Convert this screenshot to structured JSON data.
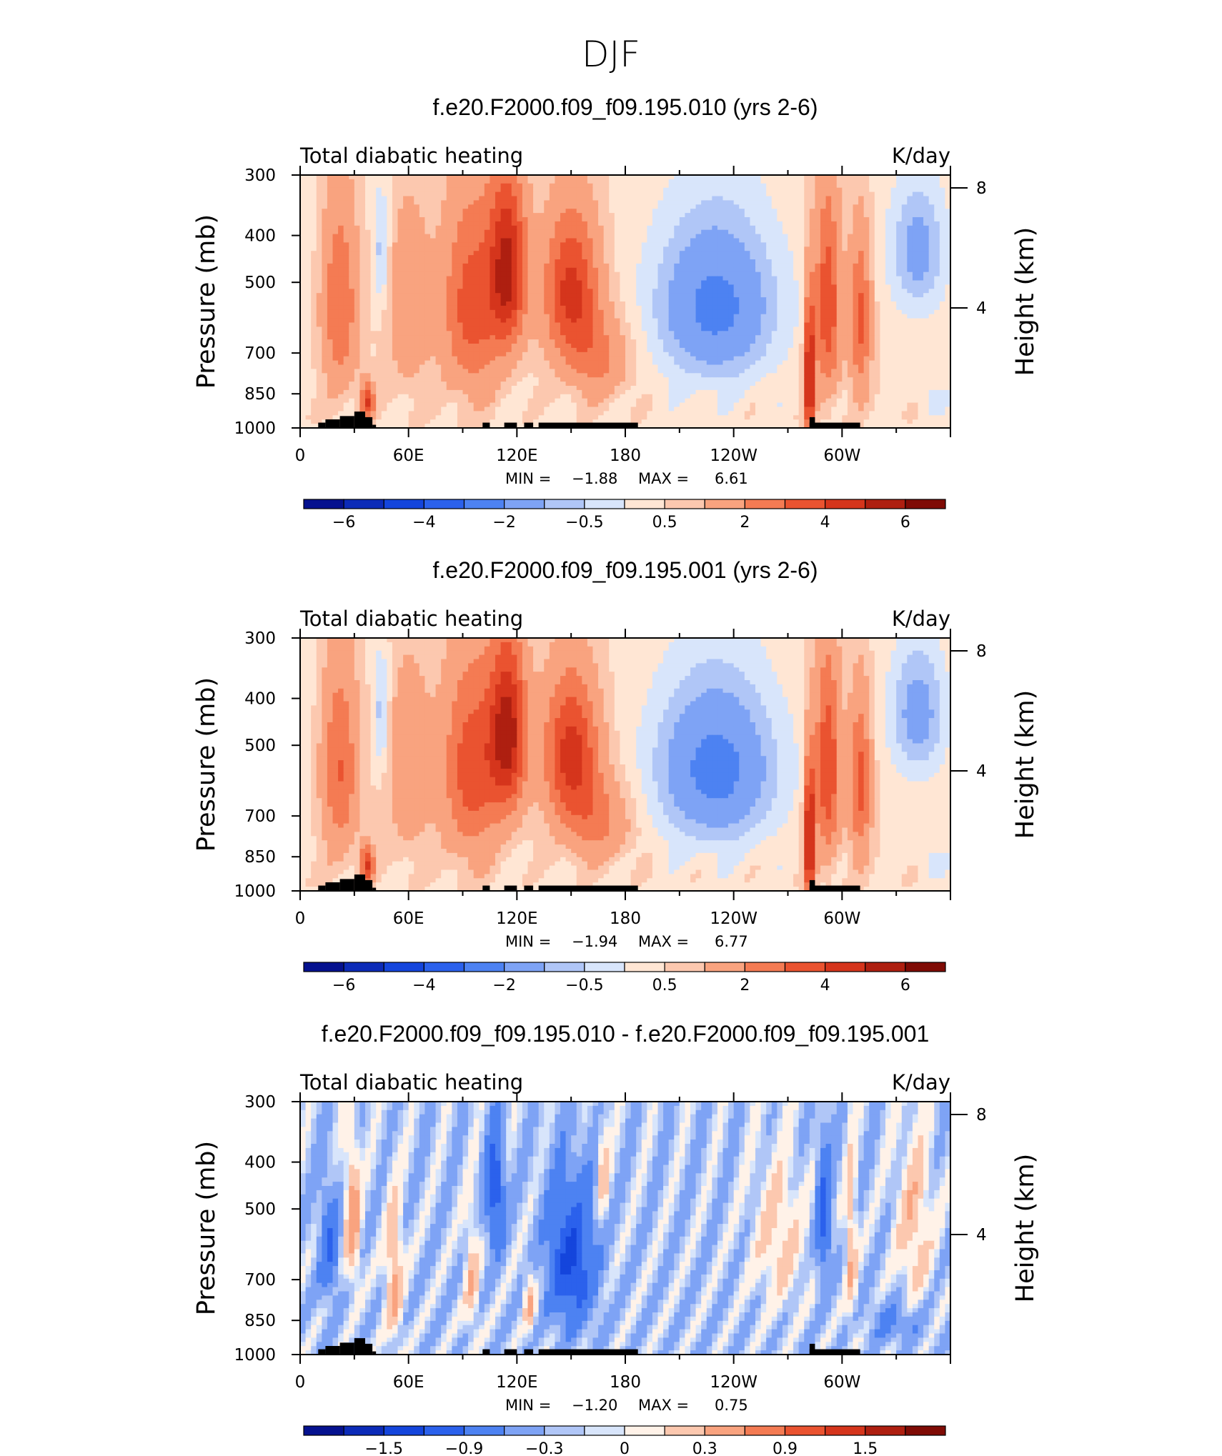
{
  "figure_title": "DJF",
  "palette_main": [
    "#05118f",
    "#0c2bb8",
    "#1445dc",
    "#2b61ec",
    "#4d82f2",
    "#7ea3f5",
    "#b0c6f7",
    "#d8e5fb",
    "#ffe6d4",
    "#fcc8af",
    "#f9a37f",
    "#f47b53",
    "#ea5330",
    "#d5351c",
    "#ae1f10",
    "#7f0b05"
  ],
  "palette_diff": [
    "#05118f",
    "#0c2bb8",
    "#1445dc",
    "#2b61ec",
    "#4d82f2",
    "#7ea3f5",
    "#b0c6f7",
    "#d8e5fb",
    "#fff2e8",
    "#fcc8af",
    "#f9a37f",
    "#f47b53",
    "#ea5330",
    "#d5351c",
    "#ae1f10",
    "#7f0b05"
  ],
  "terrain_color": "#000000",
  "chart_data": [
    {
      "type": "heatmap",
      "title": "f.e20.F2000.f09_f09.195.010 (yrs 2-6)",
      "left_label": "Total diabatic heating",
      "right_label": "K/day",
      "ylabel": "Pressure (mb)",
      "ylabel_right": "Height (km)",
      "x_ticks": [
        "0",
        "60E",
        "120E",
        "180",
        "120W",
        "60W"
      ],
      "x_tick_lon": [
        0,
        60,
        120,
        180,
        240,
        300
      ],
      "xlim": [
        0,
        360
      ],
      "y_ticks": [
        "300",
        "400",
        "500",
        "700",
        "850",
        "1000"
      ],
      "y_tick_values": [
        300,
        400,
        500,
        700,
        850,
        1000
      ],
      "ylim": [
        1000,
        300
      ],
      "height_ticks": [
        "8",
        "4"
      ],
      "height_tick_values": [
        8,
        4
      ],
      "min_label": "MIN =",
      "min_value": "−1.88",
      "max_label": "MAX =",
      "max_value": "6.61",
      "colorbar_labels": [
        "−6",
        "−4",
        "−2",
        "−0.5",
        "0.5",
        "2",
        "4",
        "6"
      ],
      "colorbar_label_positions": [
        1,
        3,
        5,
        7,
        9,
        11,
        13,
        15
      ],
      "colorbar_bins": 16,
      "field": "main",
      "scale": 1.0,
      "min": -1.88,
      "max": 6.61
    },
    {
      "type": "heatmap",
      "title": "f.e20.F2000.f09_f09.195.001 (yrs 2-6)",
      "left_label": "Total diabatic heating",
      "right_label": "K/day",
      "ylabel": "Pressure (mb)",
      "ylabel_right": "Height (km)",
      "x_ticks": [
        "0",
        "60E",
        "120E",
        "180",
        "120W",
        "60W"
      ],
      "x_tick_lon": [
        0,
        60,
        120,
        180,
        240,
        300
      ],
      "xlim": [
        0,
        360
      ],
      "y_ticks": [
        "300",
        "400",
        "500",
        "700",
        "850",
        "1000"
      ],
      "y_tick_values": [
        300,
        400,
        500,
        700,
        850,
        1000
      ],
      "ylim": [
        1000,
        300
      ],
      "height_ticks": [
        "8",
        "4"
      ],
      "height_tick_values": [
        8,
        4
      ],
      "min_label": "MIN =",
      "min_value": "−1.94",
      "max_label": "MAX =",
      "max_value": "6.77",
      "colorbar_labels": [
        "−6",
        "−4",
        "−2",
        "−0.5",
        "0.5",
        "2",
        "4",
        "6"
      ],
      "colorbar_label_positions": [
        1,
        3,
        5,
        7,
        9,
        11,
        13,
        15
      ],
      "colorbar_bins": 16,
      "field": "main",
      "scale": 1.03,
      "min": -1.94,
      "max": 6.77
    },
    {
      "type": "heatmap",
      "title": "f.e20.F2000.f09_f09.195.010 - f.e20.F2000.f09_f09.195.001",
      "left_label": "Total diabatic heating",
      "right_label": "K/day",
      "ylabel": "Pressure (mb)",
      "ylabel_right": "Height (km)",
      "x_ticks": [
        "0",
        "60E",
        "120E",
        "180",
        "120W",
        "60W"
      ],
      "x_tick_lon": [
        0,
        60,
        120,
        180,
        240,
        300
      ],
      "xlim": [
        0,
        360
      ],
      "y_ticks": [
        "300",
        "400",
        "500",
        "700",
        "850",
        "1000"
      ],
      "y_tick_values": [
        300,
        400,
        500,
        700,
        850,
        1000
      ],
      "ylim": [
        1000,
        300
      ],
      "height_ticks": [
        "8",
        "4"
      ],
      "height_tick_values": [
        8,
        4
      ],
      "min_label": "MIN =",
      "min_value": "−1.20",
      "max_label": "MAX =",
      "max_value": "0.75",
      "colorbar_labels": [
        "−1.5",
        "−0.9",
        "−0.3",
        "0",
        "0.3",
        "0.9",
        "1.5"
      ],
      "colorbar_label_positions": [
        2,
        4,
        6,
        8,
        10,
        12,
        14
      ],
      "colorbar_bins": 16,
      "field": "diff",
      "scale": 1.0,
      "min": -1.2,
      "max": 0.75
    }
  ]
}
